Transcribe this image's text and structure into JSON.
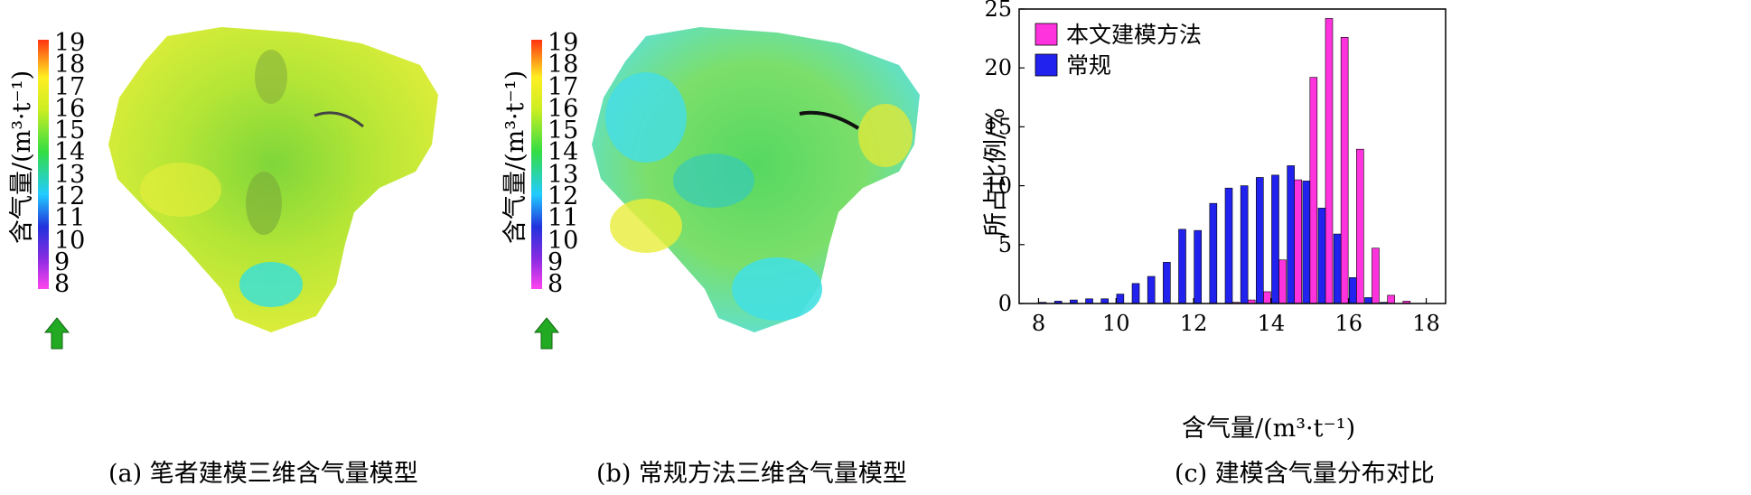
{
  "panel_a": {
    "caption": "(a) 笔者建模三维含气量模型",
    "colorbar_label": "含气量/(m³·t⁻¹)",
    "colorbar_ticks": [
      "19",
      "18",
      "17",
      "16",
      "15",
      "14",
      "13",
      "12",
      "11",
      "10",
      "9",
      "8"
    ]
  },
  "panel_b": {
    "caption": "(b) 常规方法三维含气量模型",
    "colorbar_label": "含气量/(m³·t⁻¹)",
    "colorbar_ticks": [
      "19",
      "18",
      "17",
      "16",
      "15",
      "14",
      "13",
      "12",
      "11",
      "10",
      "9",
      "8"
    ]
  },
  "panel_c": {
    "caption": "(c)  建模含气量分布对比"
  },
  "colors": {
    "series1": "#ff33dd",
    "series2": "#2222ee"
  },
  "chart_data": {
    "type": "bar",
    "xlabel": "含气量/(m³·t⁻¹)",
    "ylabel": "所占比例/%",
    "xlim": [
      7.5,
      18.5
    ],
    "ylim": [
      0,
      25
    ],
    "xticks": [
      8,
      10,
      12,
      14,
      16,
      18
    ],
    "yticks": [
      0,
      5,
      10,
      15,
      20,
      25
    ],
    "legend": "top-left",
    "x": [
      8.2,
      8.6,
      9.0,
      9.4,
      9.8,
      10.2,
      10.6,
      11.0,
      11.4,
      11.8,
      12.2,
      12.6,
      13.0,
      13.4,
      13.8,
      14.2,
      14.6,
      15.0,
      15.4,
      15.8,
      16.2,
      16.6,
      17.0,
      17.4,
      17.8,
      18.2
    ],
    "series": [
      {
        "name": "本文建模方法",
        "values": [
          0,
          0,
          0,
          0,
          0,
          0,
          0,
          0,
          0,
          0,
          0,
          0,
          0.1,
          0.3,
          1.0,
          3.7,
          10.5,
          19.2,
          24.2,
          22.6,
          13.1,
          4.7,
          0.7,
          0.2,
          0,
          0
        ]
      },
      {
        "name": "常规",
        "values": [
          0.1,
          0.2,
          0.3,
          0.4,
          0.4,
          0.8,
          1.7,
          2.3,
          3.5,
          6.3,
          6.2,
          8.5,
          9.8,
          10.0,
          10.7,
          10.9,
          11.7,
          10.4,
          8.1,
          5.9,
          2.2,
          0.5,
          0.1,
          0,
          0,
          0
        ]
      }
    ]
  }
}
